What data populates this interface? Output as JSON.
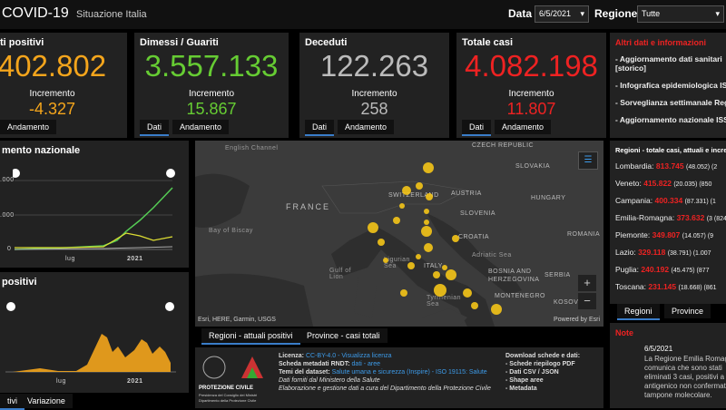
{
  "header": {
    "title": "COVID-19",
    "subtitle": "Situazione Italia",
    "date_label": "Data",
    "date": "6/5/2021",
    "region_label": "Regione",
    "region": "Tutte"
  },
  "kpis": [
    {
      "title": "ti positivi",
      "value": "402.802",
      "increment_label": "Incremento",
      "increment": "-4.327",
      "tabs": [
        "Andamento"
      ]
    },
    {
      "title": "Dimessi / Guariti",
      "value": "3.557.133",
      "increment_label": "Incremento",
      "increment": "15.867",
      "tabs": [
        "Dati",
        "Andamento"
      ]
    },
    {
      "title": "Deceduti",
      "value": "122.263",
      "increment_label": "Incremento",
      "increment": "258",
      "tabs": [
        "Dati",
        "Andamento"
      ]
    },
    {
      "title": "Totale casi",
      "value": "4.082.198",
      "increment_label": "Incremento",
      "increment": "11.807",
      "tabs": [
        "Dati",
        "Andamento"
      ]
    }
  ],
  "info": {
    "title": "Altri dati e informazioni",
    "links": [
      "- Aggiornamento dati sanitari [storico]",
      "- Infografica epidemiologica ISS",
      "- Sorveglianza settimanale Reg",
      "- Aggiornamento nazionale ISS"
    ]
  },
  "trend": {
    "title": "mento nazionale",
    "yticks": [
      ".000",
      ".000",
      "0"
    ],
    "xticks": [
      "lug",
      "2021"
    ]
  },
  "positives": {
    "title": "positivi",
    "xticks": [
      "lug",
      "2021"
    ],
    "tabs": [
      "tivi",
      "Variazione"
    ]
  },
  "map": {
    "labels": [
      "English Channel",
      "FRANCE",
      "Bay of Biscay",
      "SWITZERLAND",
      "AUSTRIA",
      "CZECH REPUBLIC",
      "SLOVAKIA",
      "HUNGARY",
      "SLOVENIA",
      "CROATIA",
      "ROMANIA",
      "BOSNIA AND HERZEGOVINA",
      "SERBIA",
      "MONTENEGRO",
      "KOSOVO",
      "ITALY",
      "Ligurian Sea",
      "Gulf of Lion",
      "Tyrrhenian Sea",
      "Adriatic Sea"
    ],
    "attribution": "Esri, HERE, Garmin, USGS",
    "powered": "Powered by Esri",
    "tabs": [
      "Regioni - attuali positivi",
      "Province - casi totali"
    ]
  },
  "regions": {
    "title": "Regioni - totale casi, attuali e incre",
    "items": [
      {
        "name": "Lombardia:",
        "total": "813.745",
        "detail": "(48.052) (2"
      },
      {
        "name": "Veneto:",
        "total": "415.822",
        "detail": "(20.035) (850"
      },
      {
        "name": "Campania:",
        "total": "400.334",
        "detail": "(87.331) (1"
      },
      {
        "name": "Emilia-Romagna:",
        "total": "373.632",
        "detail": "(3 (824)"
      },
      {
        "name": "Piemonte:",
        "total": "349.807",
        "detail": "(14.057) (9"
      },
      {
        "name": "Lazio:",
        "total": "329.118",
        "detail": "(38.791) (1.007"
      },
      {
        "name": "Puglia:",
        "total": "240.192",
        "detail": "(45.475) (877"
      },
      {
        "name": "Toscana:",
        "total": "231.145",
        "detail": "(18.668) (861"
      }
    ],
    "tabs": [
      "Regioni",
      "Province"
    ]
  },
  "footer": {
    "logo": "PROTEZIONE CIVILE",
    "logo_sub1": "Presidenza del Consiglio dei Ministri",
    "logo_sub2": "Dipartimento della Protezione Civile",
    "lines": [
      [
        "Licenza:",
        "CC-BY-4.0 - Visualizza licenza"
      ],
      [
        "Scheda metadati RNDT:",
        "dati - aree"
      ],
      [
        "Temi del dataset:",
        "Salute umana e sicurezza (Inspire) - ISO 19115: Salute"
      ]
    ],
    "provided": "Dati forniti dal Ministero della Salute",
    "managed": "Elaborazione e gestione dati a cura del Dipartimento della Protezione Civile",
    "download_title": "Download schede e dati:",
    "downloads": [
      "- Schede riepilogo PDF",
      "- Dati CSV / JSON",
      "- Shape aree",
      "- Metadata"
    ]
  },
  "note": {
    "title": "Note",
    "date": "6/5/2021",
    "text": "La Regione Emilia Romagna comunica che sono stati eliminati 3 casi, positivi a test antigenico non confermati da tampone molecolare."
  }
}
